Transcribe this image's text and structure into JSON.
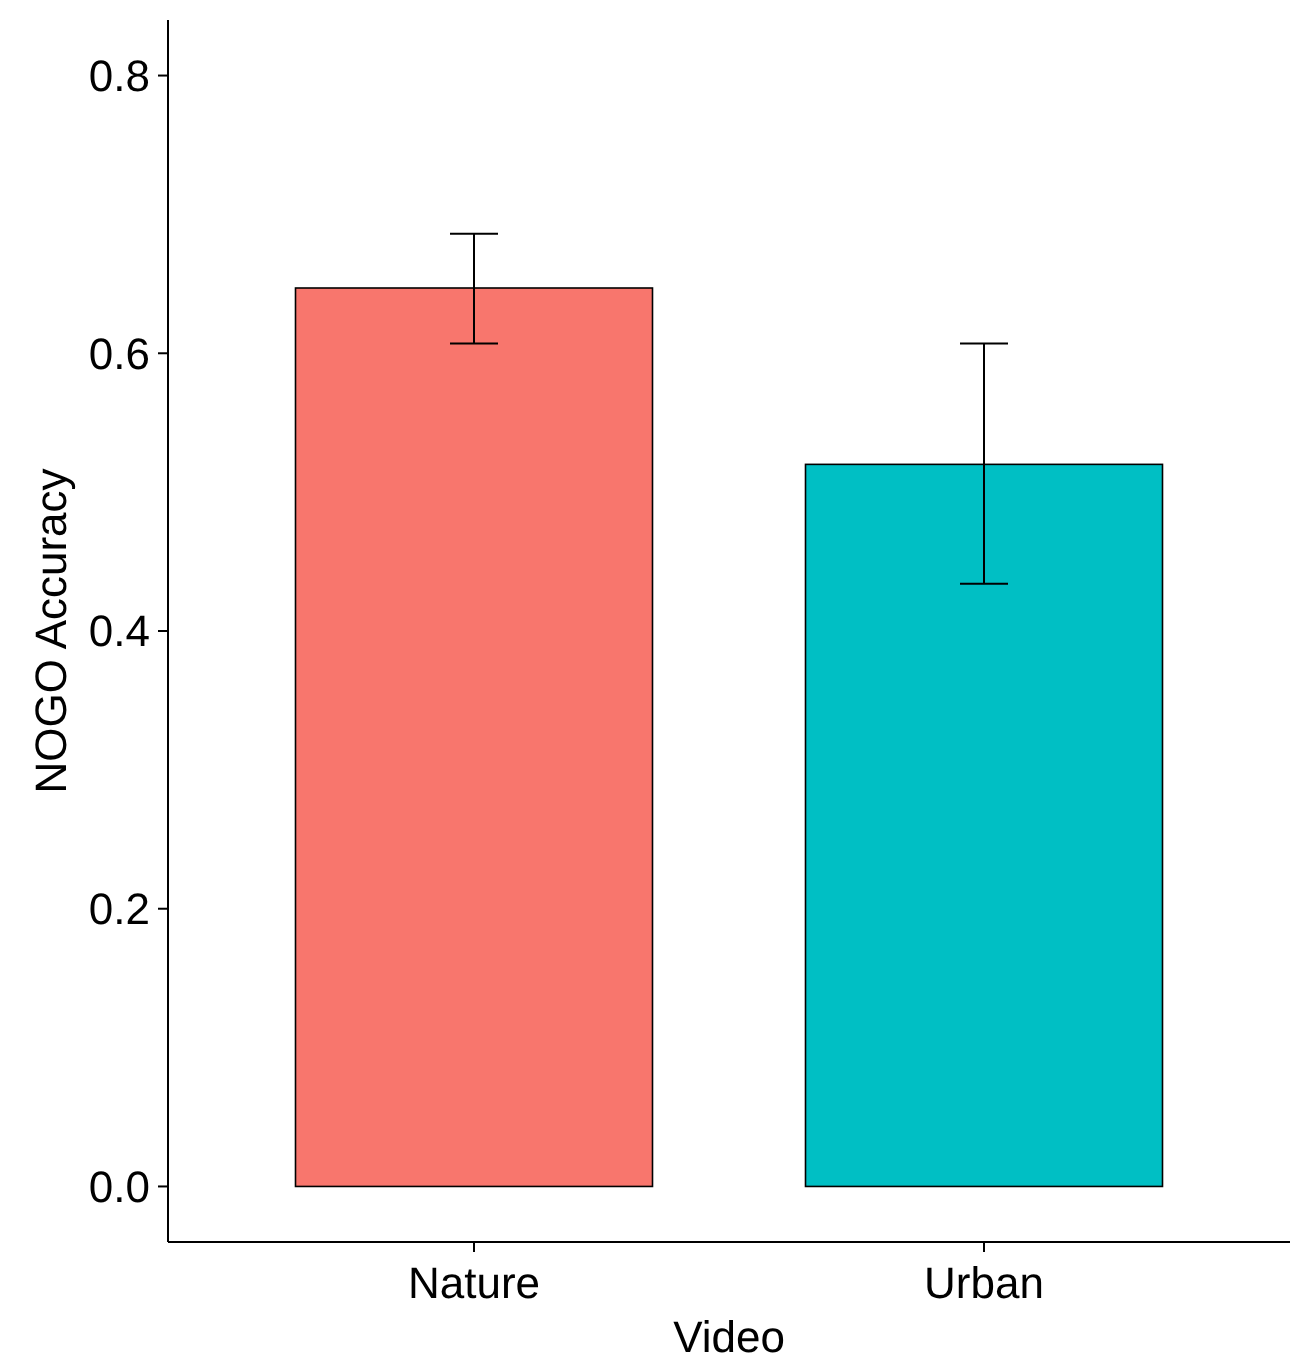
{
  "chart_data": {
    "type": "bar",
    "xlabel": "Video",
    "ylabel": "NOGO Accuracy",
    "categories": [
      "Nature",
      "Urban"
    ],
    "values": [
      0.647,
      0.52
    ],
    "colors": [
      "#f8766d",
      "#00bfc4"
    ],
    "errors": [
      [
        0.607,
        0.686
      ],
      [
        0.434,
        0.607
      ]
    ],
    "ylim": [
      -0.04,
      0.84
    ],
    "yticks": [
      {
        "value": 0,
        "label": "0.0"
      },
      {
        "value": 0.2,
        "label": "0.2"
      },
      {
        "value": 0.4,
        "label": "0.4"
      },
      {
        "value": 0.6,
        "label": "0.6"
      },
      {
        "value": 0.8,
        "label": "0.8"
      }
    ]
  }
}
